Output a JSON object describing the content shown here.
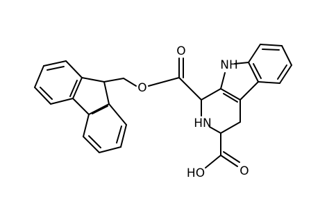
{
  "atom_labels": [
    "O",
    "O",
    "NH",
    "HN",
    "HO",
    "O"
  ]
}
